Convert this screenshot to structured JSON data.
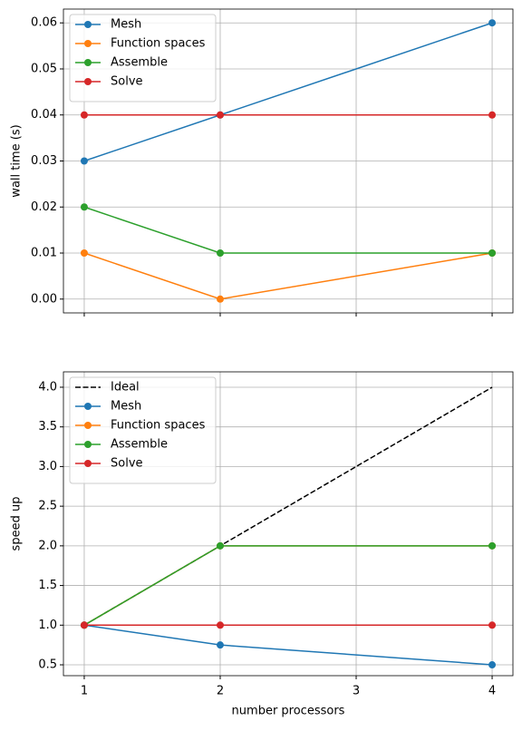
{
  "chart_data": [
    {
      "type": "line",
      "y_label": "wall time (s)",
      "x": [
        1,
        2,
        4
      ],
      "xlim": [
        0.847,
        4.153
      ],
      "xticks": [
        1,
        2,
        3,
        4
      ],
      "ylim": [
        -0.003,
        0.063
      ],
      "yticks": [
        {
          "value": 0,
          "label": "0.00"
        },
        {
          "value": 0.01,
          "label": "0.01"
        },
        {
          "value": 0.02,
          "label": "0.02"
        },
        {
          "value": 0.03,
          "label": "0.03"
        },
        {
          "value": 0.04,
          "label": "0.04"
        },
        {
          "value": 0.05,
          "label": "0.05"
        },
        {
          "value": 0.06,
          "label": "0.06"
        }
      ],
      "grid": true,
      "legend": "upper left",
      "series": [
        {
          "name": "Mesh",
          "color": "#1f77b4",
          "values": [
            0.03,
            0.04,
            0.06
          ]
        },
        {
          "name": "Function spaces",
          "color": "#ff7f0e",
          "values": [
            0.01,
            0,
            0.01
          ]
        },
        {
          "name": "Assemble",
          "color": "#2ca02c",
          "values": [
            0.02,
            0.01,
            0.01
          ]
        },
        {
          "name": "Solve",
          "color": "#d62728",
          "values": [
            0.04,
            0.04,
            0.04
          ]
        }
      ]
    },
    {
      "type": "line",
      "y_label": "speed up",
      "x_label": "number processors",
      "x": [
        1,
        2,
        4
      ],
      "xlim": [
        0.847,
        4.153
      ],
      "xticks": [
        1,
        2,
        3,
        4
      ],
      "ylim": [
        0.363,
        4.194
      ],
      "yticks": [
        0.5,
        {
          "value": 1,
          "label": "1.0"
        },
        1.5,
        {
          "value": 2,
          "label": "2.0"
        },
        2.5,
        {
          "value": 3,
          "label": "3.0"
        },
        3.5,
        {
          "value": 4,
          "label": "4.0"
        }
      ],
      "grid": true,
      "legend": "upper left",
      "series": [
        {
          "name": "Ideal",
          "color": "#000000",
          "linestyle": "dashed",
          "marker": false,
          "values": [
            1,
            2,
            4
          ]
        },
        {
          "name": "Mesh",
          "color": "#1f77b4",
          "values": [
            1,
            0.75,
            0.5
          ]
        },
        {
          "name": "Function spaces",
          "color": "#ff7f0e",
          "values": [
            1,
            2,
            2
          ]
        },
        {
          "name": "Assemble",
          "color": "#2ca02c",
          "values": [
            1,
            2,
            2
          ]
        },
        {
          "name": "Solve",
          "color": "#d62728",
          "values": [
            1,
            1,
            1
          ]
        }
      ]
    }
  ]
}
